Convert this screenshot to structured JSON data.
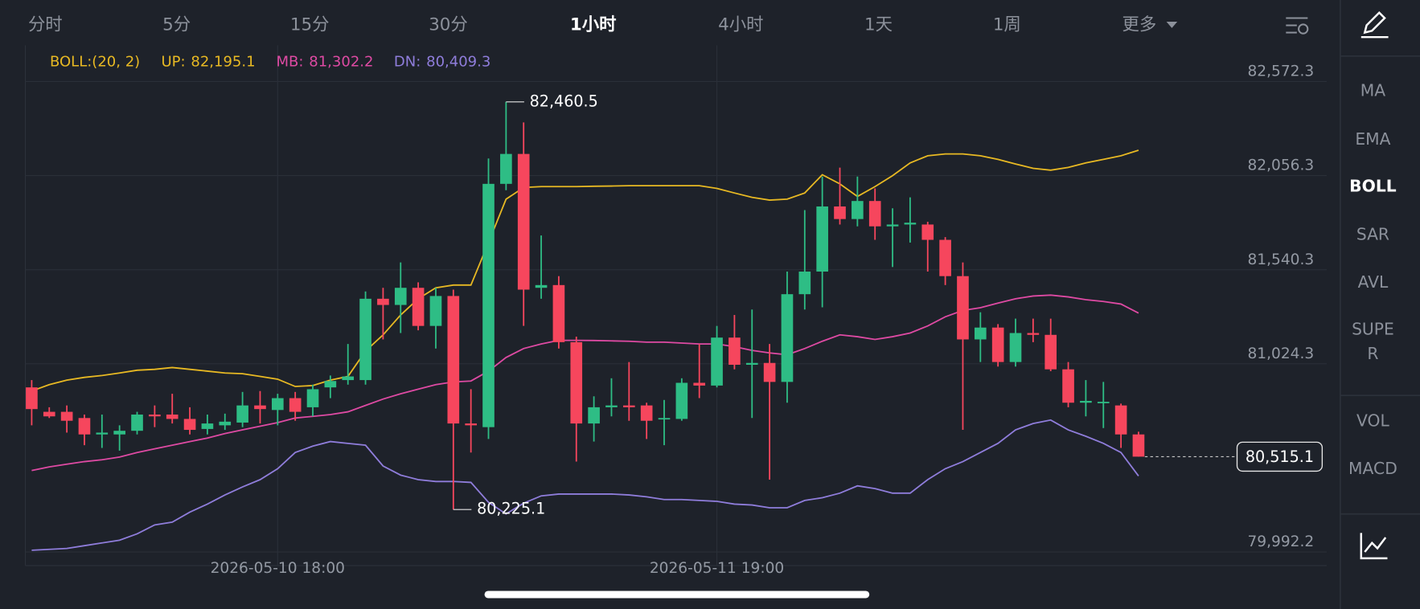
{
  "tabs": [
    {
      "label": "分时",
      "active": false
    },
    {
      "label": "5分",
      "active": false
    },
    {
      "label": "15分",
      "active": false
    },
    {
      "label": "30分",
      "active": false
    },
    {
      "label": "1小时",
      "active": true
    },
    {
      "label": "4小时",
      "active": false
    },
    {
      "label": "1天",
      "active": false
    },
    {
      "label": "1周",
      "active": false
    },
    {
      "label": "更多",
      "active": false
    }
  ],
  "indicators": [
    {
      "lines": [
        "MA"
      ],
      "active": false
    },
    {
      "lines": [
        "EMA"
      ],
      "active": false
    },
    {
      "lines": [
        "BOLL"
      ],
      "active": true
    },
    {
      "lines": [
        "SAR"
      ],
      "active": false
    },
    {
      "lines": [
        "AVL"
      ],
      "active": false
    },
    {
      "lines": [
        "SUPE",
        "R"
      ],
      "active": false
    },
    {
      "lines": [
        "VOL"
      ],
      "active": false
    },
    {
      "lines": [
        "MACD"
      ],
      "active": false
    }
  ],
  "chart_data": {
    "type": "candlestick",
    "up_color": "#2ebd85",
    "down_color": "#f6465d",
    "grid": true,
    "indicator_label": "BOLL:(20, 2)",
    "indicator_color": "#e8b923",
    "categories": [
      null,
      null,
      null,
      null,
      null,
      null,
      null,
      null,
      null,
      null,
      null,
      null,
      null,
      null,
      "2026-05-10 18:00",
      null,
      null,
      null,
      null,
      null,
      null,
      null,
      null,
      null,
      null,
      null,
      null,
      null,
      null,
      null,
      null,
      null,
      null,
      null,
      null,
      null,
      null,
      null,
      null,
      "2026-05-11 19:00",
      null,
      null,
      null,
      null,
      null,
      null,
      null,
      null,
      null,
      null,
      null,
      null,
      null,
      null,
      null,
      null,
      null,
      null,
      null,
      null,
      null,
      null,
      null,
      null
    ],
    "open": [
      80895,
      80761,
      80761,
      80727,
      80637,
      80637,
      80657,
      80746,
      80746,
      80722,
      80667,
      80687,
      80702,
      80796,
      80771,
      80836,
      80786,
      80895,
      80935,
      80935,
      81381,
      81347,
      81441,
      81232,
      81396,
      80697,
      80677,
      82011,
      82175,
      81441,
      81456,
      81143,
      80697,
      80786,
      80796,
      80796,
      80722,
      80722,
      80920,
      80905,
      81168,
      81019,
      81029,
      80925,
      81406,
      81530,
      81887,
      81818,
      81917,
      81778,
      81788,
      81788,
      81704,
      81505,
      81158,
      81223,
      81034,
      81193,
      81183,
      80994,
      80811,
      80811,
      80796,
      80637
    ],
    "high": [
      80935,
      80786,
      80796,
      80746,
      80746,
      80687,
      80761,
      80796,
      80860,
      80786,
      80746,
      80751,
      80870,
      80875,
      80860,
      80870,
      80910,
      80960,
      81133,
      81421,
      81441,
      81580,
      81471,
      81441,
      81431,
      80885,
      82150,
      82460.5,
      82348,
      81728,
      81505,
      81173,
      80846,
      80945,
      81034,
      80811,
      80826,
      80945,
      81133,
      81232,
      81292,
      81322,
      81133,
      81530,
      81867,
      82051,
      82100,
      82051,
      81986,
      81877,
      81937,
      81803,
      81719,
      81580,
      81307,
      81242,
      81272,
      81272,
      81272,
      81034,
      80935,
      80925,
      80806,
      80652
    ],
    "low": [
      80687,
      80727,
      80647,
      80578,
      80563,
      80548,
      80637,
      80677,
      80697,
      80637,
      80637,
      80662,
      80677,
      80697,
      80687,
      80712,
      80736,
      80836,
      80910,
      80910,
      81158,
      81193,
      81208,
      81108,
      80225.1,
      80538,
      80612,
      81976,
      81232,
      81381,
      81108,
      80488,
      80598,
      80736,
      80712,
      80612,
      80578,
      80712,
      80836,
      80895,
      80994,
      80727,
      80389,
      80811,
      81322,
      81334,
      81788,
      81778,
      81704,
      81555,
      81689,
      81530,
      81456,
      80662,
      81034,
      81009,
      81009,
      81143,
      80984,
      80786,
      80736,
      80672,
      80563,
      80515.1
    ],
    "close": [
      80776,
      80736,
      80712,
      80637,
      80647,
      80657,
      80746,
      80736,
      80722,
      80662,
      80697,
      80707,
      80796,
      80776,
      80836,
      80761,
      80885,
      80930,
      80955,
      81381,
      81347,
      81441,
      81232,
      81396,
      80697,
      80687,
      82011,
      82175,
      81431,
      81456,
      81143,
      80697,
      80786,
      80796,
      80786,
      80712,
      80727,
      80920,
      80905,
      81168,
      81019,
      81029,
      80925,
      81406,
      81530,
      81887,
      81818,
      81917,
      81778,
      81788,
      81798,
      81704,
      81505,
      81158,
      81223,
      81034,
      81193,
      81183,
      80994,
      80811,
      80821,
      80816,
      80637,
      80515.1
    ],
    "overlays": [
      {
        "name": "UP:",
        "color": "#e8b923",
        "value_label": "82,195.1",
        "values": [
          80875,
          80910,
          80935,
          80950,
          80960,
          80974,
          80989,
          80994,
          81004,
          80994,
          80984,
          80974,
          80970,
          80955,
          80940,
          80900,
          80905,
          80935,
          80955,
          81094,
          81183,
          81292,
          81381,
          81441,
          81456,
          81456,
          81689,
          81927,
          81991,
          81996,
          81996,
          81996,
          81998,
          81999,
          82001,
          82001,
          82001,
          82001,
          82001,
          81986,
          81961,
          81937,
          81922,
          81927,
          81961,
          82061,
          82011,
          81942,
          81996,
          82056,
          82126,
          82165,
          82175,
          82175,
          82165,
          82145,
          82120,
          82096,
          82086,
          82101,
          82126,
          82145,
          82165,
          82195.1
        ]
      },
      {
        "name": "MB:",
        "color": "#de4aa3",
        "value_label": "81,302.2",
        "values": [
          80439,
          80459,
          80474,
          80488,
          80498,
          80513,
          80538,
          80558,
          80578,
          80598,
          80617,
          80642,
          80662,
          80682,
          80702,
          80727,
          80736,
          80746,
          80761,
          80796,
          80831,
          80860,
          80885,
          80910,
          80925,
          80930,
          80984,
          81059,
          81108,
          81133,
          81153,
          81153,
          81152,
          81150,
          81148,
          81143,
          81143,
          81138,
          81133,
          81133,
          81118,
          81098,
          81084,
          81074,
          81108,
          81148,
          81183,
          81173,
          81158,
          81173,
          81193,
          81232,
          81282,
          81317,
          81332,
          81357,
          81381,
          81396,
          81401,
          81391,
          81376,
          81366,
          81352,
          81302.2
        ]
      },
      {
        "name": "DN:",
        "color": "#8f7ddb",
        "value_label": "80,409.3",
        "values": [
          80002,
          80007,
          80012,
          80027,
          80042,
          80057,
          80092,
          80141,
          80156,
          80211,
          80255,
          80305,
          80349,
          80389,
          80449,
          80538,
          80573,
          80598,
          80588,
          80578,
          80464,
          80414,
          80389,
          80379,
          80379,
          80374,
          80265,
          80201,
          80260,
          80300,
          80310,
          80310,
          80310,
          80310,
          80305,
          80295,
          80280,
          80280,
          80275,
          80270,
          80255,
          80250,
          80235,
          80235,
          80275,
          80290,
          80315,
          80355,
          80340,
          80315,
          80315,
          80389,
          80449,
          80488,
          80538,
          80588,
          80662,
          80697,
          80716,
          80662,
          80627,
          80588,
          80538,
          80409.3
        ]
      }
    ],
    "ylim": [
      79918,
      82771
    ],
    "yticks": [
      {
        "value": 79992.2,
        "label": "79,992.2"
      },
      {
        "value": 81024.3,
        "label": "81,024.3"
      },
      {
        "value": 81540.3,
        "label": "81,540.3"
      },
      {
        "value": 82056.3,
        "label": "82,056.3"
      },
      {
        "value": 82572.3,
        "label": "82,572.3"
      }
    ],
    "annotations": [
      {
        "value": 82460.5,
        "label": "82,460.5"
      },
      {
        "value": 80225.1,
        "label": "80,225.1"
      }
    ],
    "price_line": {
      "value": 80515.1,
      "label": "80,515.1"
    }
  }
}
